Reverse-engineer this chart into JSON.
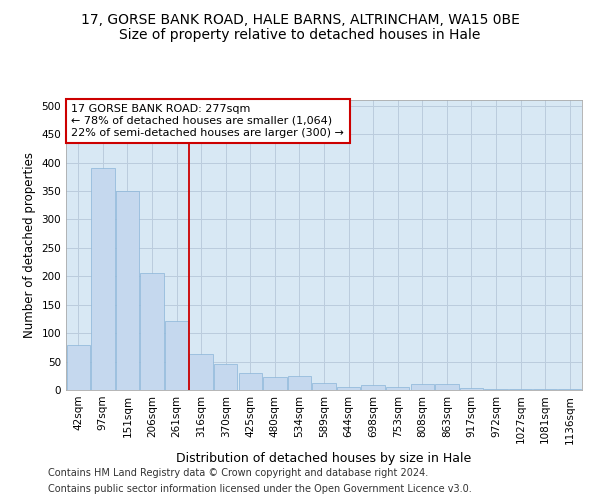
{
  "title_line1": "17, GORSE BANK ROAD, HALE BARNS, ALTRINCHAM, WA15 0BE",
  "title_line2": "Size of property relative to detached houses in Hale",
  "xlabel": "Distribution of detached houses by size in Hale",
  "ylabel": "Number of detached properties",
  "categories": [
    "42sqm",
    "97sqm",
    "151sqm",
    "206sqm",
    "261sqm",
    "316sqm",
    "370sqm",
    "425sqm",
    "480sqm",
    "534sqm",
    "589sqm",
    "644sqm",
    "698sqm",
    "753sqm",
    "808sqm",
    "863sqm",
    "917sqm",
    "972sqm",
    "1027sqm",
    "1081sqm",
    "1136sqm"
  ],
  "values": [
    80,
    390,
    350,
    205,
    122,
    63,
    45,
    30,
    22,
    24,
    13,
    6,
    9,
    6,
    10,
    10,
    3,
    1,
    1,
    1,
    1
  ],
  "bar_color": "#c5d8ee",
  "bar_edge_color": "#8ab4d8",
  "vline_x": 4.5,
  "vline_color": "#cc0000",
  "annotation_line1": "17 GORSE BANK ROAD: 277sqm",
  "annotation_line2": "← 78% of detached houses are smaller (1,064)",
  "annotation_line3": "22% of semi-detached houses are larger (300) →",
  "annotation_box_color": "#cc0000",
  "annotation_box_fill": "#ffffff",
  "ylim": [
    0,
    510
  ],
  "yticks": [
    0,
    50,
    100,
    150,
    200,
    250,
    300,
    350,
    400,
    450,
    500
  ],
  "grid_color": "#bbccdd",
  "bg_color": "#d8e8f4",
  "footer_line1": "Contains HM Land Registry data © Crown copyright and database right 2024.",
  "footer_line2": "Contains public sector information licensed under the Open Government Licence v3.0.",
  "title_fontsize": 10,
  "subtitle_fontsize": 10,
  "annotation_fontsize": 8,
  "ylabel_fontsize": 8.5,
  "xlabel_fontsize": 9,
  "tick_fontsize": 7.5,
  "footer_fontsize": 7
}
